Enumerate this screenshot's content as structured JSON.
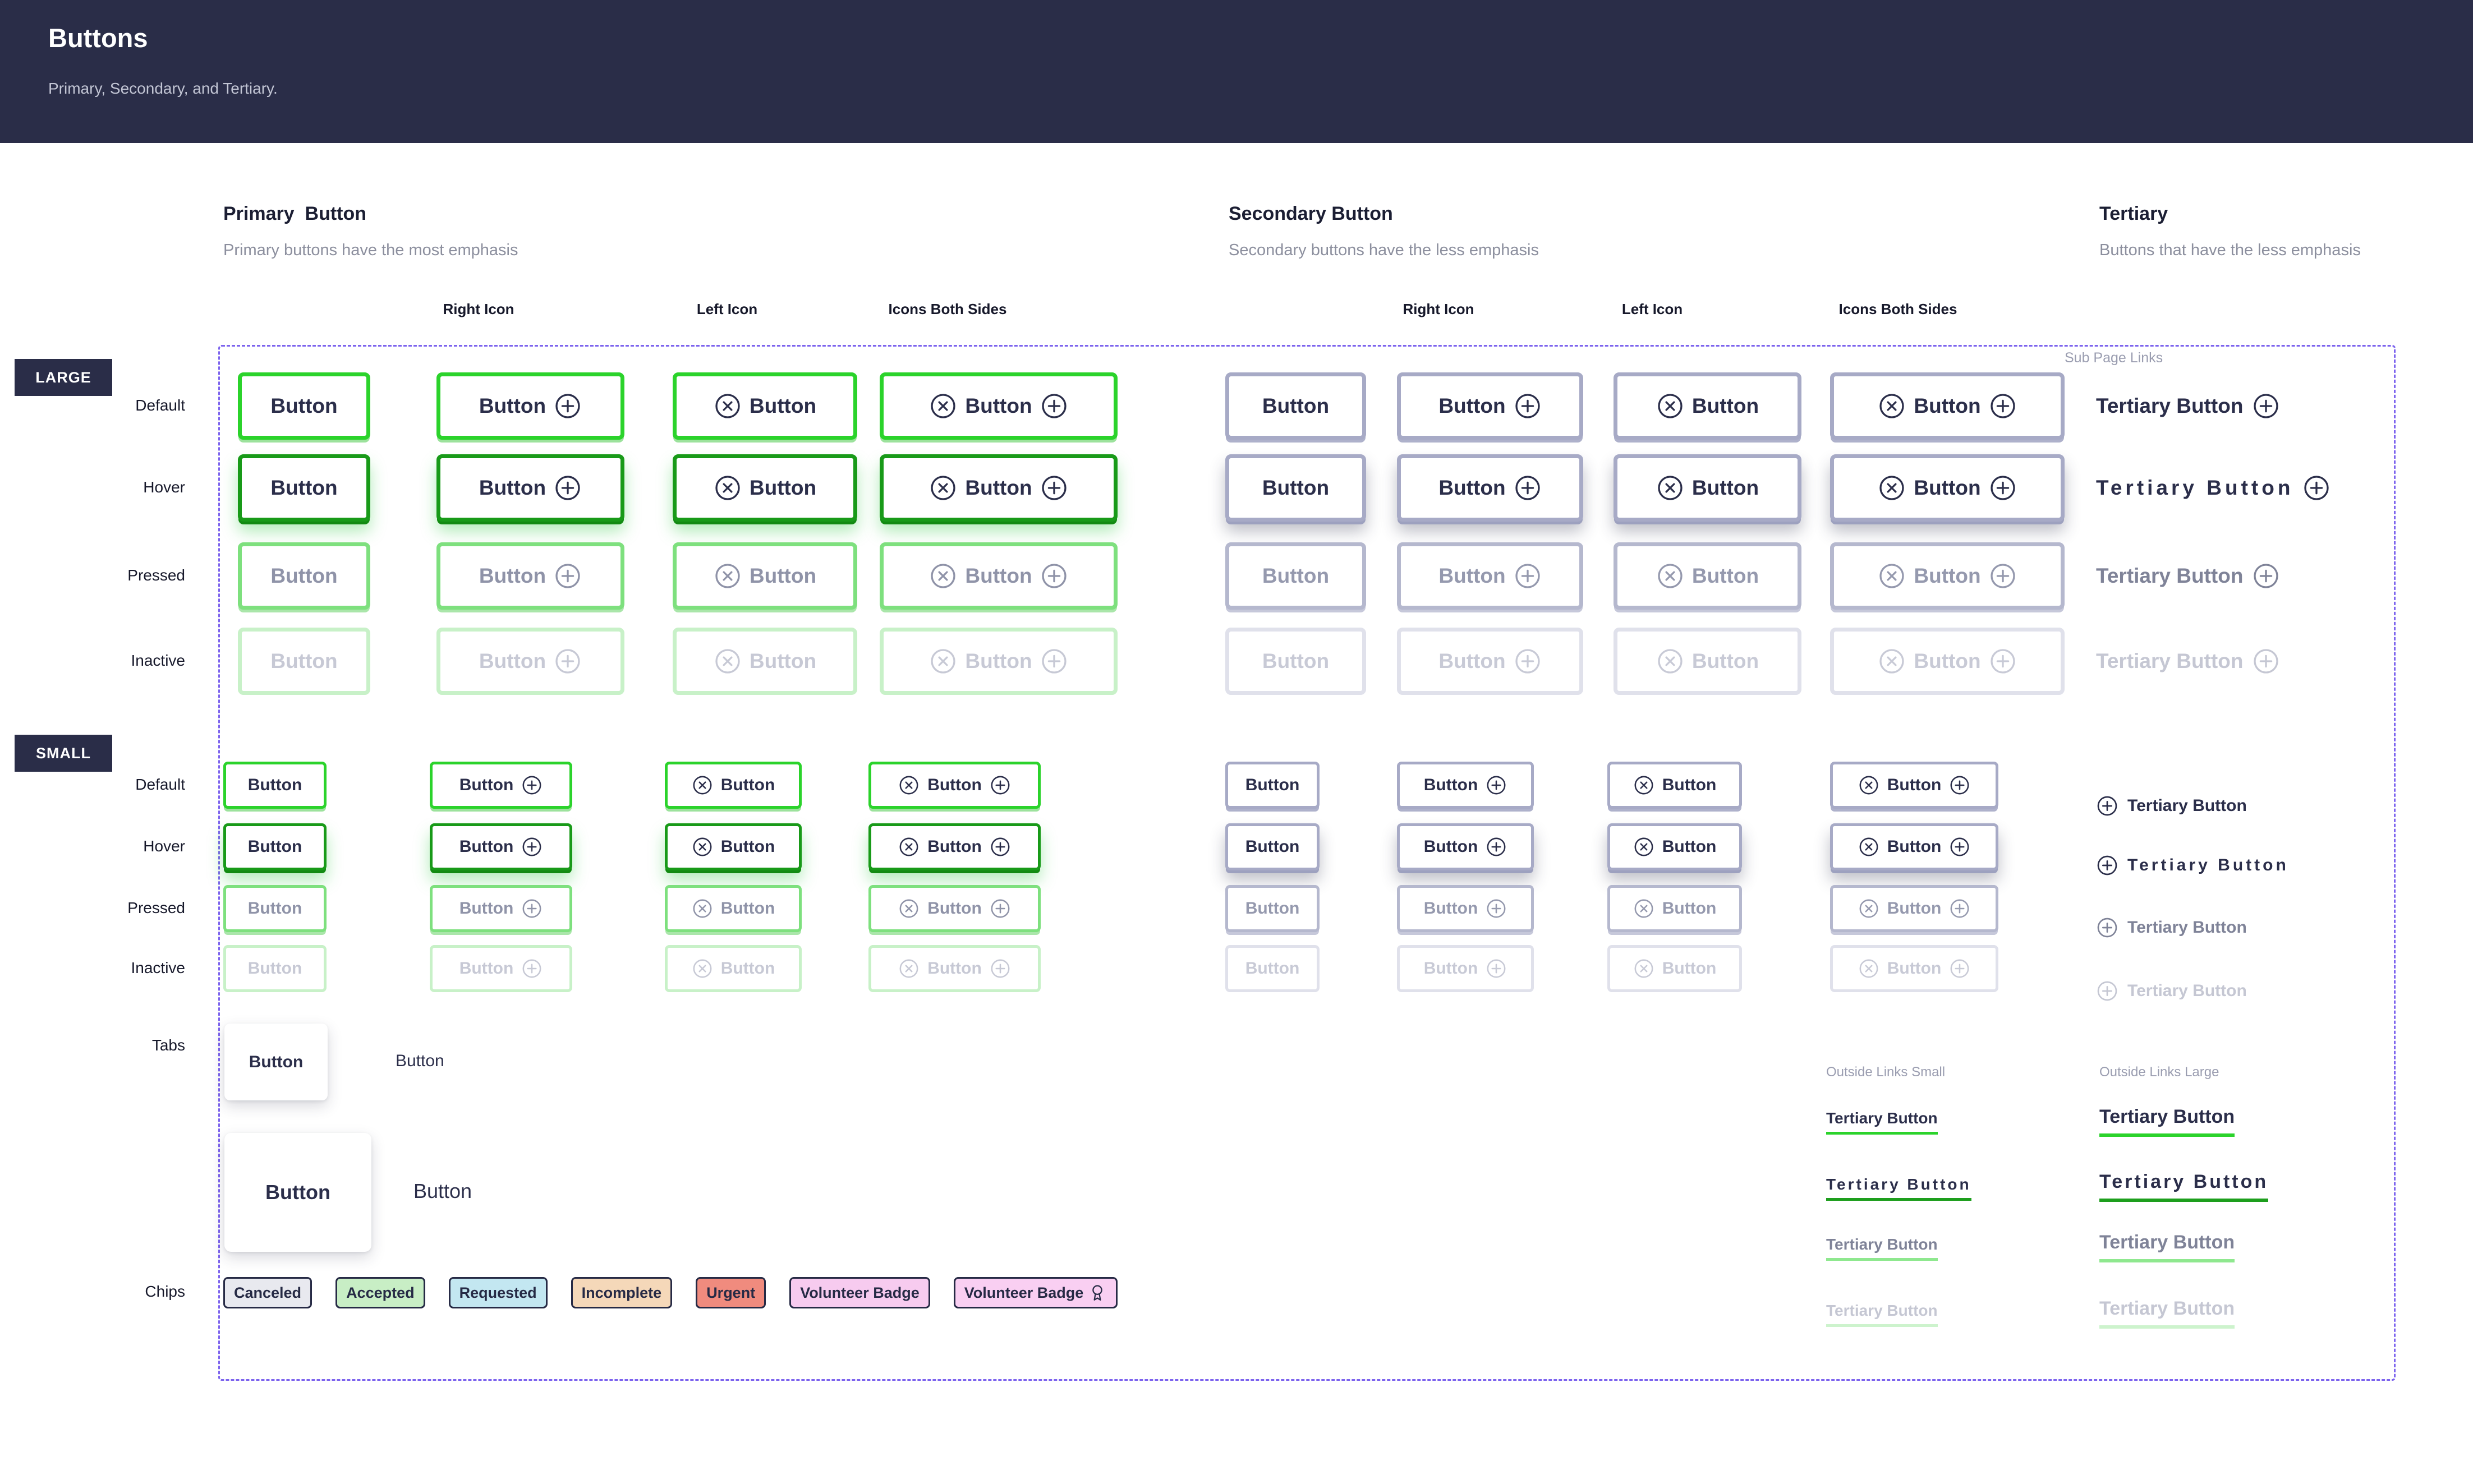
{
  "header": {
    "title": "Buttons",
    "subtitle": "Primary, Secondary, and Tertiary."
  },
  "sections": {
    "primary": {
      "title": "Primary  Button",
      "subtitle": "Primary buttons have the most emphasis"
    },
    "secondary": {
      "title": "Secondary Button",
      "subtitle": "Secondary buttons have the less emphasis"
    },
    "tertiary": {
      "title": "Tertiary",
      "subtitle": "Buttons that have the less emphasis"
    }
  },
  "column_labels": [
    "Right Icon",
    "Left Icon",
    "Icons Both Sides"
  ],
  "badges": {
    "large": "LARGE",
    "small": "SMALL"
  },
  "row_labels": [
    "Default",
    "Hover",
    "Pressed",
    "Inactive"
  ],
  "tabs_label": "Tabs",
  "chips_label": "Chips",
  "labels": {
    "button": "Button",
    "tertiary": "Tertiary Button",
    "sub_page_links": "Sub Page Links",
    "outside_small": "Outside Links Small",
    "outside_large": "Outside Links Large"
  },
  "chips": [
    {
      "slug": "canceled",
      "label": "Canceled",
      "bg": "#E8E9EF",
      "icon": false
    },
    {
      "slug": "accepted",
      "label": "Accepted",
      "bg": "#C8EEC5",
      "icon": false
    },
    {
      "slug": "requested",
      "label": "Requested",
      "bg": "#C3E7F1",
      "icon": false
    },
    {
      "slug": "incomplete",
      "label": "Incomplete",
      "bg": "#F5D8B9",
      "icon": false
    },
    {
      "slug": "urgent",
      "label": "Urgent",
      "bg": "#F08B7E",
      "icon": false
    },
    {
      "slug": "volunteer-badge",
      "label": "Volunteer Badge",
      "bg": "#F7CBEF",
      "icon": false
    },
    {
      "slug": "volunteer-badge-icon",
      "label": "Volunteer Badge",
      "bg": "#F9CFF2",
      "icon": true
    }
  ],
  "colors": {
    "header_bg": "#2A2D48",
    "navy_text": "#2B2E4A",
    "primary_green": "#2BD32B",
    "primary_green_hover": "#189A18",
    "primary_green_pressed": "#7EE07E",
    "primary_green_inactive": "#C8F1C8",
    "secondary_border": "#A7AAC6",
    "dashed_border": "#7C63EE",
    "muted_text": "#8C8F9E"
  }
}
